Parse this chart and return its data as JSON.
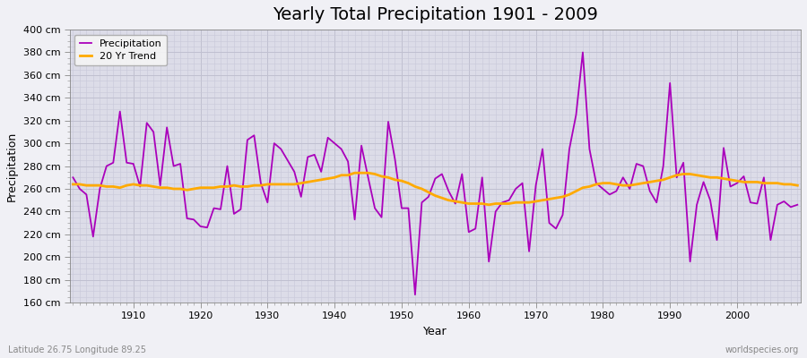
{
  "title": "Yearly Total Precipitation 1901 - 2009",
  "xlabel": "Year",
  "ylabel": "Precipitation",
  "start_year": 1901,
  "end_year": 2009,
  "ylim": [
    160,
    400
  ],
  "ytick_values": [
    160,
    180,
    200,
    220,
    240,
    260,
    280,
    300,
    320,
    340,
    360,
    380,
    400
  ],
  "background_color": "#dcdce8",
  "plot_bg_color": "#dcdce8",
  "fig_bg_color": "#f0f0f5",
  "precip_color": "#aa00bb",
  "trend_color": "#ffaa00",
  "precip_linewidth": 1.3,
  "trend_linewidth": 2.0,
  "precipitation": [
    270,
    260,
    255,
    218,
    260,
    280,
    283,
    328,
    283,
    282,
    262,
    318,
    310,
    263,
    314,
    280,
    282,
    234,
    233,
    227,
    226,
    243,
    242,
    280,
    238,
    242,
    303,
    307,
    265,
    248,
    300,
    295,
    285,
    275,
    253,
    288,
    290,
    275,
    305,
    300,
    295,
    284,
    233,
    298,
    270,
    243,
    235,
    319,
    286,
    243,
    243,
    167,
    248,
    253,
    269,
    273,
    258,
    247,
    273,
    222,
    225,
    270,
    196,
    240,
    248,
    250,
    260,
    265,
    205,
    263,
    295,
    230,
    225,
    237,
    295,
    325,
    380,
    295,
    265,
    260,
    255,
    258,
    270,
    260,
    282,
    280,
    258,
    248,
    280,
    353,
    270,
    283,
    196,
    246,
    266,
    250,
    215,
    296,
    262,
    265,
    271,
    248,
    247,
    270,
    215,
    246,
    249,
    244,
    246
  ],
  "trend": [
    264,
    264,
    263,
    263,
    263,
    262,
    262,
    261,
    263,
    264,
    263,
    263,
    262,
    261,
    261,
    260,
    260,
    259,
    260,
    261,
    261,
    261,
    262,
    262,
    263,
    262,
    262,
    263,
    263,
    264,
    264,
    264,
    264,
    264,
    265,
    266,
    267,
    268,
    269,
    270,
    272,
    272,
    274,
    274,
    274,
    273,
    271,
    270,
    268,
    267,
    265,
    262,
    260,
    257,
    254,
    252,
    250,
    249,
    248,
    247,
    247,
    247,
    246,
    247,
    247,
    247,
    248,
    248,
    248,
    249,
    250,
    251,
    252,
    253,
    255,
    258,
    261,
    262,
    264,
    265,
    265,
    264,
    263,
    263,
    264,
    265,
    266,
    267,
    268,
    270,
    272,
    273,
    273,
    272,
    271,
    270,
    270,
    269,
    268,
    267,
    266,
    266,
    266,
    265,
    265,
    265,
    264,
    264,
    263
  ],
  "lat_lon_text": "Latitude 26.75 Longitude 89.25",
  "credit_text": "worldspecies.org",
  "legend_labels": [
    "Precipitation",
    "20 Yr Trend"
  ],
  "title_fontsize": 14,
  "axis_label_fontsize": 9,
  "tick_fontsize": 8,
  "minor_grid_color": "#c8c8d8",
  "major_grid_color": "#c0c0d0"
}
